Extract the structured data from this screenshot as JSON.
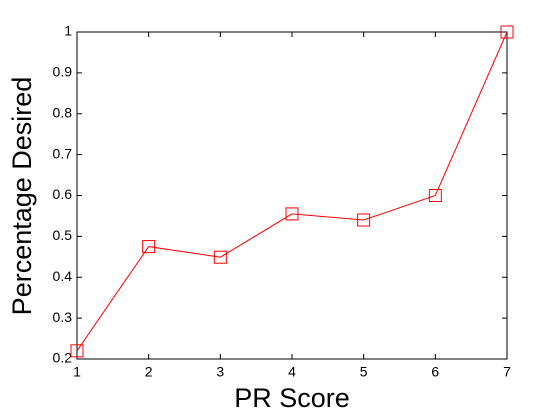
{
  "chart_data": {
    "type": "line",
    "x_label": "PR Score",
    "y_label": "Percentage Desired",
    "x": [
      1,
      2,
      3,
      4,
      5,
      6,
      7
    ],
    "values": [
      0.22,
      0.475,
      0.449,
      0.555,
      0.54,
      0.6,
      1
    ],
    "color": "#ff0000",
    "marker": "square",
    "xlim": [
      1,
      7
    ],
    "xticks": [
      1,
      2,
      3,
      4,
      5,
      6,
      7
    ],
    "ylim": [
      0.2,
      1
    ],
    "yticks": [
      0.2,
      0.3,
      0.4,
      0.5,
      0.6,
      0.7,
      0.8,
      0.9,
      1
    ],
    "grid": false
  }
}
